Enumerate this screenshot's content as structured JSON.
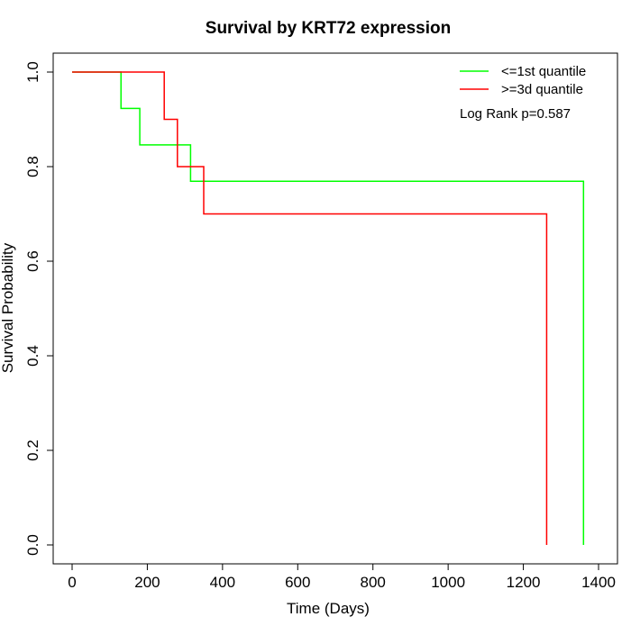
{
  "chart_data": {
    "type": "line",
    "title": "Survival by KRT72 expression",
    "xlabel": "Time (Days)",
    "ylabel": "Survival Probability",
    "xlim": [
      0,
      1400
    ],
    "ylim": [
      0,
      1.0
    ],
    "xticks": [
      0,
      200,
      400,
      600,
      800,
      1000,
      1200,
      1400
    ],
    "yticks": [
      0.0,
      0.2,
      0.4,
      0.6,
      0.8,
      1.0
    ],
    "xtick_labels": [
      "0",
      "200",
      "400",
      "600",
      "800",
      "1000",
      "1200",
      "1400"
    ],
    "ytick_labels": [
      "0.0",
      "0.2",
      "0.4",
      "0.6",
      "0.8",
      "1.0"
    ],
    "grid": false,
    "legend_position": "top-right",
    "annotation": "Log Rank p=0.587",
    "series": [
      {
        "name": "<=1st quantile",
        "color": "#00ff00",
        "step": true,
        "x": [
          0,
          130,
          180,
          315,
          1360,
          1360
        ],
        "y": [
          1.0,
          0.923,
          0.846,
          0.769,
          0.769,
          0.0
        ]
      },
      {
        "name": ">=3d quantile",
        "color": "#ff0000",
        "step": true,
        "x": [
          0,
          245,
          280,
          350,
          1262,
          1262
        ],
        "y": [
          1.0,
          0.9,
          0.8,
          0.7,
          0.7,
          0.0
        ]
      }
    ]
  }
}
